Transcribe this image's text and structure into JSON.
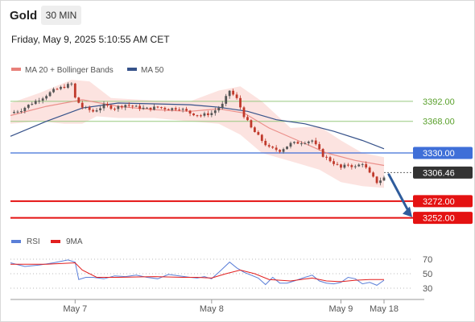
{
  "header": {
    "title": "Gold",
    "timeframe": "30 MIN"
  },
  "timestamp": "Friday, May 9, 2025 5:10:55 AM CET",
  "colors": {
    "up": "#555555",
    "down": "#c0392b",
    "ma20": "#e8807a",
    "ma50": "#36528a",
    "band": "#fbd9d6",
    "level_green": "#97c97f",
    "level_blue": "#3f6fd8",
    "level_red": "#e41212",
    "price_tag": "#333333",
    "rsi": "#5b7fd8",
    "rsi_ma": "#e21f1f"
  },
  "chart_data": [
    {
      "type": "candlestick",
      "legend": [
        {
          "name": "MA 20 + Bollinger Bands",
          "color": "#e8807a"
        },
        {
          "name": "MA 50",
          "color": "#36528a"
        }
      ],
      "ylim": [
        3240,
        3420
      ],
      "levels": [
        {
          "label": "3392.00",
          "value": 3392,
          "style": "green"
        },
        {
          "label": "3368.00",
          "value": 3368,
          "style": "green"
        },
        {
          "label": "3330.00",
          "value": 3330,
          "style": "blue"
        },
        {
          "label": "3306.46",
          "value": 3306.46,
          "style": "price"
        },
        {
          "label": "3272.00",
          "value": 3272,
          "style": "red"
        },
        {
          "label": "3252.00",
          "value": 3252,
          "style": "red"
        }
      ],
      "arrow": {
        "from": 3306,
        "to": 3252,
        "direction": "down"
      },
      "close_path": [
        [
          0,
          3378
        ],
        [
          3,
          3382
        ],
        [
          6,
          3390
        ],
        [
          9,
          3397
        ],
        [
          12,
          3405
        ],
        [
          15,
          3410
        ],
        [
          17,
          3413
        ],
        [
          18,
          3396
        ],
        [
          20,
          3385
        ],
        [
          23,
          3380
        ],
        [
          26,
          3387
        ],
        [
          29,
          3384
        ],
        [
          32,
          3388
        ],
        [
          35,
          3385
        ],
        [
          38,
          3383
        ],
        [
          41,
          3385
        ],
        [
          44,
          3383
        ],
        [
          47,
          3384
        ],
        [
          50,
          3378
        ],
        [
          53,
          3375
        ],
        [
          56,
          3378
        ],
        [
          59,
          3388
        ],
        [
          61,
          3405
        ],
        [
          63,
          3395
        ],
        [
          65,
          3375
        ],
        [
          67,
          3360
        ],
        [
          70,
          3345
        ],
        [
          72,
          3336
        ],
        [
          75,
          3333
        ],
        [
          78,
          3341
        ],
        [
          81,
          3343
        ],
        [
          84,
          3345
        ],
        [
          87,
          3327
        ],
        [
          90,
          3318
        ],
        [
          92,
          3312
        ],
        [
          94,
          3316
        ],
        [
          96,
          3313
        ],
        [
          98,
          3318
        ],
        [
          100,
          3305
        ],
        [
          102,
          3295
        ],
        [
          104,
          3300
        ]
      ],
      "ma20_path": [
        [
          0,
          3375
        ],
        [
          10,
          3386
        ],
        [
          20,
          3394
        ],
        [
          30,
          3386
        ],
        [
          40,
          3382
        ],
        [
          50,
          3380
        ],
        [
          58,
          3383
        ],
        [
          65,
          3378
        ],
        [
          72,
          3360
        ],
        [
          80,
          3345
        ],
        [
          88,
          3330
        ],
        [
          96,
          3321
        ],
        [
          104,
          3315
        ]
      ],
      "band_upper_path": [
        [
          0,
          3390
        ],
        [
          8,
          3402
        ],
        [
          17,
          3418
        ],
        [
          22,
          3416
        ],
        [
          28,
          3396
        ],
        [
          40,
          3393
        ],
        [
          50,
          3392
        ],
        [
          58,
          3405
        ],
        [
          64,
          3410
        ],
        [
          70,
          3392
        ],
        [
          78,
          3360
        ],
        [
          86,
          3362
        ],
        [
          92,
          3345
        ],
        [
          98,
          3330
        ],
        [
          104,
          3325
        ]
      ],
      "band_lower_path": [
        [
          0,
          3365
        ],
        [
          8,
          3368
        ],
        [
          15,
          3365
        ],
        [
          20,
          3365
        ],
        [
          24,
          3374
        ],
        [
          30,
          3372
        ],
        [
          40,
          3372
        ],
        [
          50,
          3368
        ],
        [
          58,
          3365
        ],
        [
          64,
          3352
        ],
        [
          70,
          3330
        ],
        [
          78,
          3320
        ],
        [
          86,
          3310
        ],
        [
          92,
          3295
        ],
        [
          98,
          3290
        ],
        [
          104,
          3288
        ]
      ],
      "ma50_path": [
        [
          0,
          3350
        ],
        [
          10,
          3368
        ],
        [
          20,
          3384
        ],
        [
          30,
          3390
        ],
        [
          40,
          3389
        ],
        [
          50,
          3388
        ],
        [
          58,
          3385
        ],
        [
          66,
          3380
        ],
        [
          74,
          3370
        ],
        [
          82,
          3365
        ],
        [
          90,
          3356
        ],
        [
          98,
          3345
        ],
        [
          104,
          3335
        ]
      ]
    },
    {
      "type": "line",
      "legend": [
        {
          "name": "RSI",
          "color": "#5b7fd8"
        },
        {
          "name": "9MA",
          "color": "#e21f1f"
        }
      ],
      "ylim": [
        20,
        80
      ],
      "yticks": [
        "70",
        "50",
        "30"
      ],
      "ytick_values": [
        70,
        50,
        30
      ],
      "x_labels": [
        "May 7",
        "May 8",
        "May 9",
        "May 18"
      ],
      "x_label_positions": [
        18,
        56,
        92,
        104
      ],
      "rsi_path": [
        [
          0,
          65
        ],
        [
          4,
          60
        ],
        [
          8,
          62
        ],
        [
          12,
          65
        ],
        [
          16,
          69
        ],
        [
          18,
          66
        ],
        [
          19,
          42
        ],
        [
          21,
          45
        ],
        [
          23,
          45
        ],
        [
          26,
          43
        ],
        [
          29,
          47
        ],
        [
          32,
          46
        ],
        [
          35,
          48
        ],
        [
          38,
          45
        ],
        [
          41,
          43
        ],
        [
          44,
          49
        ],
        [
          47,
          47
        ],
        [
          50,
          45
        ],
        [
          52,
          44
        ],
        [
          54,
          46
        ],
        [
          56,
          43
        ],
        [
          58,
          52
        ],
        [
          61,
          66
        ],
        [
          63,
          58
        ],
        [
          65,
          52
        ],
        [
          67,
          48
        ],
        [
          69,
          44
        ],
        [
          71,
          35
        ],
        [
          73,
          45
        ],
        [
          75,
          37
        ],
        [
          77,
          37
        ],
        [
          79,
          40
        ],
        [
          82,
          45
        ],
        [
          84,
          48
        ],
        [
          86,
          40
        ],
        [
          88,
          37
        ],
        [
          90,
          36
        ],
        [
          92,
          38
        ],
        [
          94,
          45
        ],
        [
          96,
          43
        ],
        [
          98,
          36
        ],
        [
          100,
          38
        ],
        [
          102,
          34
        ],
        [
          104,
          41
        ]
      ],
      "ma9_path": [
        [
          0,
          63
        ],
        [
          10,
          63
        ],
        [
          18,
          65
        ],
        [
          20,
          55
        ],
        [
          24,
          45
        ],
        [
          30,
          45
        ],
        [
          40,
          46
        ],
        [
          48,
          45
        ],
        [
          52,
          45
        ],
        [
          56,
          44
        ],
        [
          60,
          50
        ],
        [
          64,
          55
        ],
        [
          68,
          50
        ],
        [
          72,
          42
        ],
        [
          78,
          40
        ],
        [
          84,
          44
        ],
        [
          88,
          40
        ],
        [
          92,
          39
        ],
        [
          96,
          41
        ],
        [
          100,
          42
        ],
        [
          104,
          42
        ]
      ]
    }
  ]
}
